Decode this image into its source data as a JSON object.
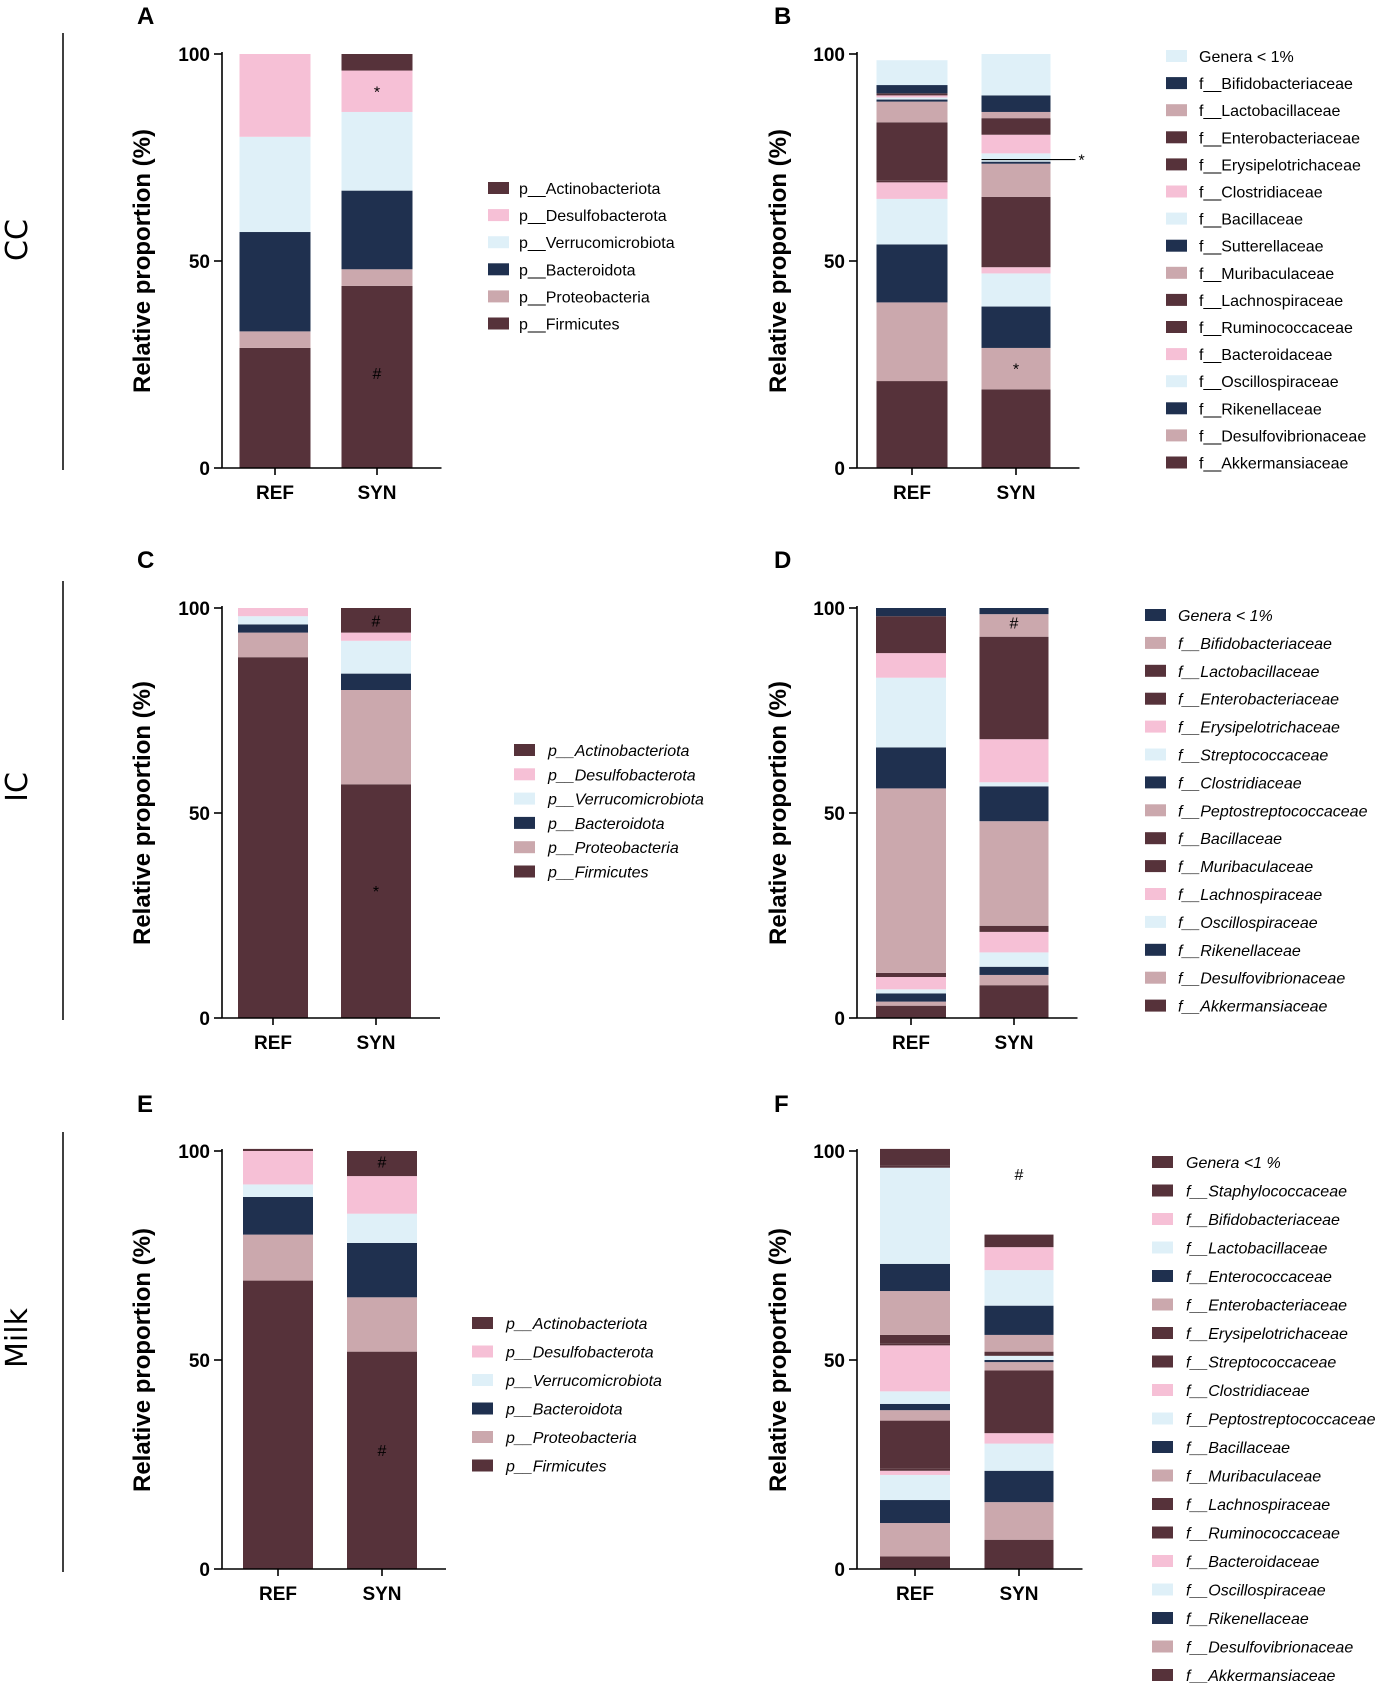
{
  "row_labels": [
    "CC",
    "IC",
    "Milk"
  ],
  "colors": {
    "maroon": "#56323a",
    "pink": "#f6c0d6",
    "lightblue": "#dff0f8",
    "navy": "#1f304f",
    "rose": "#cba8ad",
    "axis": "#000000"
  },
  "chart_data": [
    {
      "panel": "A",
      "type": "bar",
      "stacked": true,
      "row": "CC",
      "ylabel": "Relative proportion (%)",
      "ylim": [
        0,
        100
      ],
      "yticks": [
        0,
        50,
        100
      ],
      "categories": [
        "REF",
        "SYN"
      ],
      "legend_italic": false,
      "series": [
        {
          "name": "p__Firmicutes",
          "color": "maroon",
          "values": [
            29,
            44
          ]
        },
        {
          "name": "p__Proteobacteria",
          "color": "rose",
          "values": [
            4,
            4
          ]
        },
        {
          "name": "p__Bacteroidota",
          "color": "navy",
          "values": [
            24,
            19
          ]
        },
        {
          "name": "p__Verrucomicrobiota",
          "color": "lightblue",
          "values": [
            23,
            19
          ]
        },
        {
          "name": "p__Desulfobacterota",
          "color": "pink",
          "values": [
            20,
            10
          ]
        },
        {
          "name": "p__Actinobacteriota",
          "color": "maroon",
          "values": [
            0,
            4
          ]
        }
      ],
      "annotations": [
        {
          "text": "#",
          "category": 1,
          "y": 23
        },
        {
          "text": "*",
          "category": 1,
          "y": 91
        }
      ]
    },
    {
      "panel": "B",
      "type": "bar",
      "stacked": true,
      "row": "CC",
      "ylabel": "Relative proportion (%)",
      "ylim": [
        0,
        100
      ],
      "yticks": [
        0,
        50,
        100
      ],
      "categories": [
        "REF",
        "SYN"
      ],
      "legend_italic": false,
      "series": [
        {
          "name": "f__Akkermansiaceae",
          "color": "maroon",
          "values": [
            21,
            19
          ]
        },
        {
          "name": "f__Desulfovibrionaceae",
          "color": "rose",
          "values": [
            19,
            10
          ]
        },
        {
          "name": "f__Rikenellaceae",
          "color": "navy",
          "values": [
            14,
            10
          ]
        },
        {
          "name": "f__Oscillospiraceae",
          "color": "lightblue",
          "values": [
            11,
            8
          ]
        },
        {
          "name": "f__Bacteroidaceae",
          "color": "pink",
          "values": [
            4,
            1.5
          ]
        },
        {
          "name": "f__Ruminococcaceae",
          "color": "maroon",
          "values": [
            0.5,
            17
          ]
        },
        {
          "name": "f__Lachnospiraceae",
          "color": "maroon",
          "values": [
            14,
            0
          ]
        },
        {
          "name": "f__Muribaculaceae",
          "color": "rose",
          "values": [
            5,
            8
          ]
        },
        {
          "name": "f__Sutterellaceae",
          "color": "navy",
          "values": [
            0.5,
            0.5
          ]
        },
        {
          "name": "f__Bacillaceae",
          "color": "lightblue",
          "values": [
            0.5,
            2
          ]
        },
        {
          "name": "f__Clostridiaceae",
          "color": "pink",
          "values": [
            0.5,
            4.5
          ]
        },
        {
          "name": "f__Erysipelotrichaceae",
          "color": "maroon",
          "values": [
            0.5,
            4
          ]
        },
        {
          "name": "f__Enterobacteriaceae",
          "color": "maroon",
          "values": [
            0,
            0
          ]
        },
        {
          "name": "f__Lactobacillaceae",
          "color": "rose",
          "values": [
            0,
            1.5
          ]
        },
        {
          "name": "f__Bifidobacteriaceae",
          "color": "navy",
          "values": [
            2,
            4
          ]
        },
        {
          "name": "Genera < 1%",
          "color": "lightblue",
          "values": [
            6,
            10
          ]
        }
      ],
      "annotations": [
        {
          "text": "*",
          "category": 1,
          "y": 24
        },
        {
          "text": "*",
          "category": 1,
          "y": 74.5,
          "leader": true
        }
      ]
    },
    {
      "panel": "C",
      "type": "bar",
      "stacked": true,
      "row": "IC",
      "ylabel": "Relative proportion (%)",
      "ylim": [
        0,
        100
      ],
      "yticks": [
        0,
        50,
        100
      ],
      "categories": [
        "REF",
        "SYN"
      ],
      "legend_italic": true,
      "series": [
        {
          "name": "p__Firmicutes",
          "color": "maroon",
          "values": [
            88,
            57
          ]
        },
        {
          "name": "p__Proteobacteria",
          "color": "rose",
          "values": [
            6,
            23
          ]
        },
        {
          "name": "p__Bacteroidota",
          "color": "navy",
          "values": [
            2,
            4
          ]
        },
        {
          "name": "p__Verrucomicrobiota",
          "color": "lightblue",
          "values": [
            2,
            8
          ]
        },
        {
          "name": "p__Desulfobacterota",
          "color": "pink",
          "values": [
            2,
            2
          ]
        },
        {
          "name": "p__Actinobacteriota",
          "color": "maroon",
          "values": [
            0,
            6
          ]
        }
      ],
      "annotations": [
        {
          "text": "*",
          "category": 1,
          "y": 31
        },
        {
          "text": "#",
          "category": 1,
          "y": 97
        }
      ]
    },
    {
      "panel": "D",
      "type": "bar",
      "stacked": true,
      "row": "IC",
      "ylabel": "Relative proportion (%)",
      "ylim": [
        0,
        100
      ],
      "yticks": [
        0,
        50,
        100
      ],
      "categories": [
        "REF",
        "SYN"
      ],
      "legend_italic": true,
      "series": [
        {
          "name": "f__Akkermansiaceae",
          "color": "maroon",
          "values": [
            3,
            8
          ]
        },
        {
          "name": "f__Desulfovibrionaceae",
          "color": "rose",
          "values": [
            1,
            2.5
          ]
        },
        {
          "name": "f__Rikenellaceae",
          "color": "navy",
          "values": [
            2,
            2
          ]
        },
        {
          "name": "f__Oscillospiraceae",
          "color": "lightblue",
          "values": [
            1,
            3.5
          ]
        },
        {
          "name": "f__Lachnospiraceae",
          "color": "pink",
          "values": [
            3,
            5
          ]
        },
        {
          "name": "f__Muribaculaceae",
          "color": "maroon",
          "values": [
            1,
            1.5
          ]
        },
        {
          "name": "f__Bacillaceae",
          "color": "maroon",
          "values": [
            0,
            0
          ]
        },
        {
          "name": "f__Peptostreptococcaceae",
          "color": "rose",
          "values": [
            45,
            25.5
          ]
        },
        {
          "name": "f__Clostridiaceae",
          "color": "navy",
          "values": [
            10,
            8.5
          ]
        },
        {
          "name": "f__Streptococcaceae",
          "color": "lightblue",
          "values": [
            17,
            1
          ]
        },
        {
          "name": "f__Erysipelotrichaceae",
          "color": "pink",
          "values": [
            6,
            10.5
          ]
        },
        {
          "name": "f__Enterobacteriaceae",
          "color": "maroon",
          "values": [
            9,
            25
          ]
        },
        {
          "name": "f__Lactobacillaceae",
          "color": "maroon",
          "values": [
            0,
            0
          ]
        },
        {
          "name": "f__Bifidobacteriaceae",
          "color": "rose",
          "values": [
            0,
            5.5
          ]
        },
        {
          "name": "Genera < 1%",
          "color": "navy",
          "values": [
            2,
            1.5
          ]
        }
      ],
      "annotations": [
        {
          "text": "#",
          "category": 1,
          "y": 96.5
        }
      ]
    },
    {
      "panel": "E",
      "type": "bar",
      "stacked": true,
      "row": "Milk",
      "ylabel": "Relative proportion (%)",
      "ylim": [
        0,
        100
      ],
      "yticks": [
        0,
        50,
        100
      ],
      "categories": [
        "REF",
        "SYN"
      ],
      "legend_italic": true,
      "series": [
        {
          "name": "p__Firmicutes",
          "color": "maroon",
          "values": [
            69,
            52
          ]
        },
        {
          "name": "p__Proteobacteria",
          "color": "rose",
          "values": [
            11,
            13
          ]
        },
        {
          "name": "p__Bacteroidota",
          "color": "navy",
          "values": [
            9,
            13
          ]
        },
        {
          "name": "p__Verrucomicrobiota",
          "color": "lightblue",
          "values": [
            3,
            7
          ]
        },
        {
          "name": "p__Desulfobacterota",
          "color": "pink",
          "values": [
            8,
            9
          ]
        },
        {
          "name": "p__Actinobacteriota",
          "color": "maroon",
          "values": [
            0.5,
            6
          ]
        }
      ],
      "annotations": [
        {
          "text": "#",
          "category": 1,
          "y": 28.5
        },
        {
          "text": "#",
          "category": 1,
          "y": 97.5
        }
      ]
    },
    {
      "panel": "F",
      "type": "bar",
      "stacked": true,
      "row": "Milk",
      "ylabel": "Relative proportion (%)",
      "ylim": [
        0,
        100
      ],
      "yticks": [
        0,
        50,
        100
      ],
      "categories": [
        "REF",
        "SYN"
      ],
      "legend_italic": true,
      "series": [
        {
          "name": "f__Akkermansiaceae",
          "color": "maroon",
          "values": [
            3,
            7
          ]
        },
        {
          "name": "f__Desulfovibrionaceae",
          "color": "rose",
          "values": [
            8,
            9
          ]
        },
        {
          "name": "f__Rikenellaceae",
          "color": "navy",
          "values": [
            5.5,
            7.5
          ]
        },
        {
          "name": "f__Oscillospiraceae",
          "color": "lightblue",
          "values": [
            6,
            6.5
          ]
        },
        {
          "name": "f__Bacteroidaceae",
          "color": "pink",
          "values": [
            1,
            2.5
          ]
        },
        {
          "name": "f__Ruminococcaceae",
          "color": "maroon",
          "values": [
            0.5,
            0
          ]
        },
        {
          "name": "f__Lachnospiraceae",
          "color": "maroon",
          "values": [
            11.5,
            15
          ]
        },
        {
          "name": "f__Muribaculaceae",
          "color": "rose",
          "values": [
            2.5,
            2
          ]
        },
        {
          "name": "f__Bacillaceae",
          "color": "navy",
          "values": [
            1.5,
            0.5
          ]
        },
        {
          "name": "f__Peptostreptococcaceae",
          "color": "lightblue",
          "values": [
            3,
            1
          ]
        },
        {
          "name": "f__Clostridiaceae",
          "color": "pink",
          "values": [
            11,
            0
          ]
        },
        {
          "name": "f__Streptococcaceae",
          "color": "maroon",
          "values": [
            0.5,
            0
          ]
        },
        {
          "name": "f__Erysipelotrichaceae",
          "color": "maroon",
          "values": [
            2,
            1
          ]
        },
        {
          "name": "f__Enterobacteriaceae",
          "color": "rose",
          "values": [
            10.5,
            4
          ]
        },
        {
          "name": "f__Enterococcaceae",
          "color": "navy",
          "values": [
            6.5,
            7
          ]
        },
        {
          "name": "f__Lactobacillaceae",
          "color": "lightblue",
          "values": [
            23,
            8.5
          ]
        },
        {
          "name": "f__Bifidobacteriaceae",
          "color": "pink",
          "values": [
            0,
            5.5
          ]
        },
        {
          "name": "f__Staphylococcaceae",
          "color": "maroon",
          "values": [
            0.5,
            0
          ]
        },
        {
          "name": "Genera <1 %",
          "color": "maroon",
          "values": [
            4,
            3
          ]
        }
      ],
      "annotations": [
        {
          "text": "#",
          "category": 1,
          "y": 94.5
        }
      ]
    }
  ]
}
